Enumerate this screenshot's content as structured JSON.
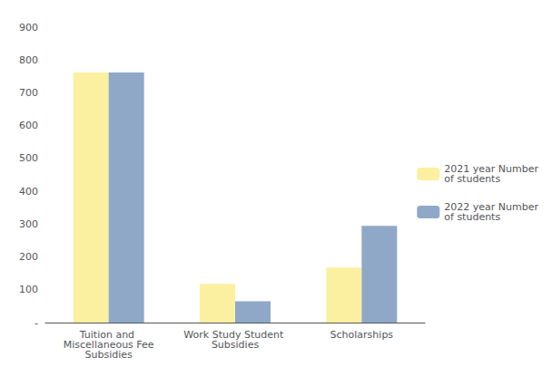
{
  "chart_data": {
    "type": "bar",
    "categories": [
      "Tuition and Miscellaneous Fee\nSubsidies",
      "Work Study Student Subsidies",
      "Scholarships"
    ],
    "series": [
      {
        "name": "2021 year Number\nof students",
        "color": "#FAF0A0",
        "values": [
          762,
          118,
          168
        ]
      },
      {
        "name": "2022 year Number\nof students",
        "color": "#8FA8C8",
        "values": [
          762,
          65,
          295
        ]
      }
    ],
    "ylim": [
      0,
      900
    ],
    "yticks": [
      {
        "value": 0,
        "label": "-"
      },
      100,
      200,
      300,
      400,
      500,
      600,
      700,
      800,
      900
    ],
    "grid": false,
    "legend": "right"
  }
}
